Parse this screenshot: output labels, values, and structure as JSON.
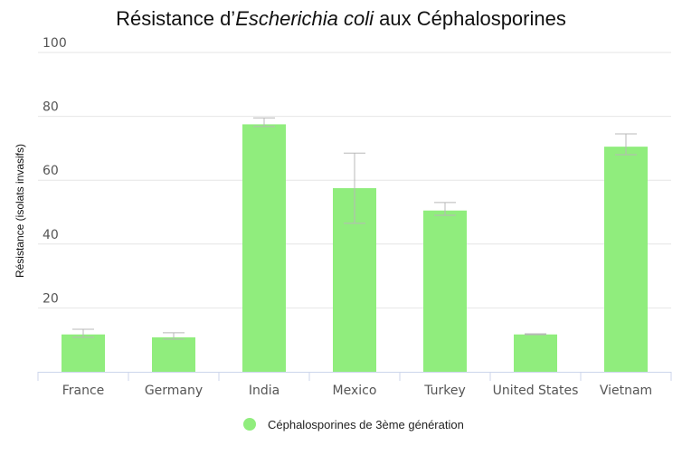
{
  "chart_data": {
    "type": "bar",
    "title_pre": "Résistance d’",
    "title_italic": "Escherichia coli",
    "title_post": " aux Céphalosporines",
    "xlabel": "",
    "ylabel": "Résistance (isolats invasifs)",
    "ylim": [
      0,
      100
    ],
    "yticks": [
      20,
      40,
      60,
      80,
      100
    ],
    "grid": true,
    "legend_position": "bottom-center",
    "categories": [
      "France",
      "Germany",
      "India",
      "Mexico",
      "Turkey",
      "United States",
      "Vietnam"
    ],
    "series": [
      {
        "name": "Céphalosporines de 3ème génération",
        "color": "#90ed7d",
        "values": [
          11.7,
          10.8,
          77.5,
          57.5,
          50.5,
          11.7,
          70.5
        ],
        "error_low": [
          10.8,
          10.2,
          76.8,
          46.5,
          49.0,
          11.6,
          68.0
        ],
        "error_high": [
          13.3,
          12.2,
          79.5,
          68.5,
          53.0,
          11.9,
          74.5
        ]
      }
    ]
  }
}
